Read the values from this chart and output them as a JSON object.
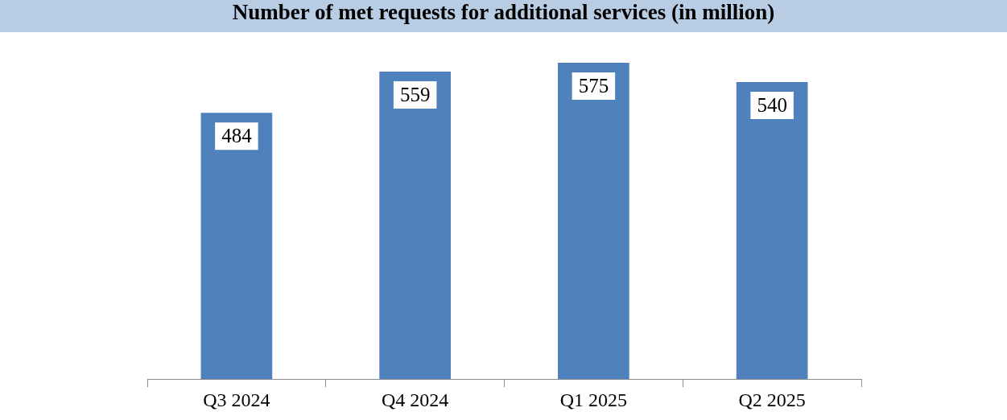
{
  "chart_data": {
    "type": "bar",
    "title": "Number of met requests for additional services (in million)",
    "categories": [
      "Q3 2024",
      "Q4 2024",
      "Q1 2025",
      "Q2 2025"
    ],
    "values": [
      484,
      559,
      575,
      540
    ],
    "color": "#4f81bd",
    "data_labels": true,
    "grid": false,
    "legend": false
  }
}
